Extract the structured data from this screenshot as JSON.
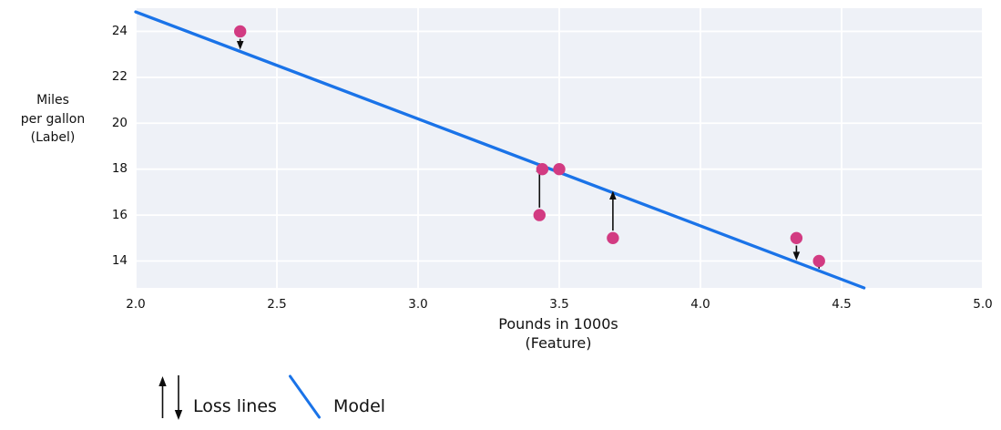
{
  "chart_data": {
    "type": "scatter",
    "title": "",
    "x_axis": {
      "label_lines": [
        "Pounds in 1000s",
        "(Feature)"
      ],
      "tick_labels": [
        "2.0",
        "2.5",
        "3.0",
        "3.5",
        "4.0",
        "4.5",
        "5.0"
      ],
      "range": [
        2.0,
        5.0
      ]
    },
    "y_axis": {
      "label_lines": [
        "Miles",
        "per gallon",
        "(Label)"
      ],
      "tick_labels": [
        "14",
        "16",
        "18",
        "20",
        "22",
        "24"
      ],
      "range": [
        12.83,
        25.01
      ]
    },
    "grid": true,
    "points": [
      {
        "x": 2.37,
        "y": 24
      },
      {
        "x": 3.44,
        "y": 18
      },
      {
        "x": 3.5,
        "y": 18
      },
      {
        "x": 3.43,
        "y": 16
      },
      {
        "x": 3.69,
        "y": 15
      },
      {
        "x": 4.34,
        "y": 15
      },
      {
        "x": 4.42,
        "y": 14
      }
    ],
    "model_line": {
      "slope": -4.66,
      "intercept": 34.17
    },
    "loss_arrows_at_x": [
      2.37,
      3.43,
      3.69,
      4.34,
      4.42
    ]
  },
  "legend": {
    "loss_label": "Loss lines",
    "model_label": "Model"
  },
  "colors": {
    "model_blue": "#1a73e8",
    "point_pink": "#d23b82",
    "arrow_black": "#0d0d0d",
    "plot_background": "#eef1f7",
    "gridline": "#ffffff",
    "text": "#111111"
  }
}
